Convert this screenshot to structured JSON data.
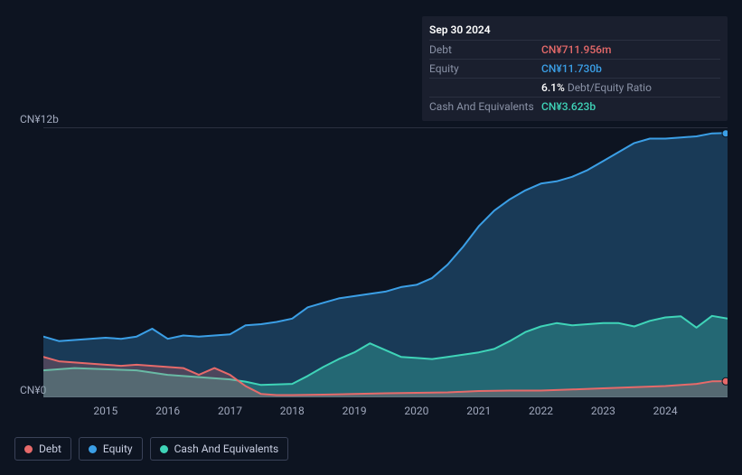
{
  "tooltip": {
    "title": "Sep 30 2024",
    "rows": [
      {
        "label": "Debt",
        "value": "CN¥711.956m",
        "color": "#e66a6a"
      },
      {
        "label": "Equity",
        "value": "CN¥11.730b",
        "color": "#3b9fe6"
      },
      {
        "label": "",
        "value": "6.1%",
        "suffix": "Debt/Equity Ratio",
        "color": "#ffffff"
      },
      {
        "label": "Cash And Equivalents",
        "value": "CN¥3.623b",
        "color": "#3fd4b8"
      }
    ]
  },
  "chart": {
    "type": "area",
    "background_color": "#0d1421",
    "grid_color": "#2a3040",
    "x_domain": [
      2014,
      2025
    ],
    "ylim": [
      0,
      12
    ],
    "y_unit_prefix": "CN¥",
    "y_axis": {
      "ticks": [
        {
          "value": 0,
          "label": "CN¥0"
        },
        {
          "value": 12,
          "label": "CN¥12b"
        }
      ]
    },
    "x_axis": {
      "ticks": [
        2015,
        2016,
        2017,
        2018,
        2019,
        2020,
        2021,
        2022,
        2023,
        2024
      ]
    },
    "series": [
      {
        "name": "Equity",
        "color": "#3b9fe6",
        "fill_opacity": 0.28,
        "line_width": 2,
        "data": [
          [
            2014.0,
            2.7
          ],
          [
            2014.25,
            2.5
          ],
          [
            2014.5,
            2.55
          ],
          [
            2014.75,
            2.6
          ],
          [
            2015.0,
            2.65
          ],
          [
            2015.25,
            2.6
          ],
          [
            2015.5,
            2.7
          ],
          [
            2015.75,
            3.05
          ],
          [
            2016.0,
            2.6
          ],
          [
            2016.25,
            2.75
          ],
          [
            2016.5,
            2.7
          ],
          [
            2016.75,
            2.75
          ],
          [
            2017.0,
            2.8
          ],
          [
            2017.25,
            3.2
          ],
          [
            2017.5,
            3.25
          ],
          [
            2017.75,
            3.35
          ],
          [
            2018.0,
            3.5
          ],
          [
            2018.25,
            4.0
          ],
          [
            2018.5,
            4.2
          ],
          [
            2018.75,
            4.4
          ],
          [
            2019.0,
            4.5
          ],
          [
            2019.25,
            4.6
          ],
          [
            2019.5,
            4.7
          ],
          [
            2019.75,
            4.9
          ],
          [
            2020.0,
            5.0
          ],
          [
            2020.25,
            5.3
          ],
          [
            2020.5,
            5.9
          ],
          [
            2020.75,
            6.7
          ],
          [
            2021.0,
            7.6
          ],
          [
            2021.25,
            8.3
          ],
          [
            2021.5,
            8.8
          ],
          [
            2021.75,
            9.2
          ],
          [
            2022.0,
            9.5
          ],
          [
            2022.25,
            9.6
          ],
          [
            2022.5,
            9.8
          ],
          [
            2022.75,
            10.1
          ],
          [
            2023.0,
            10.5
          ],
          [
            2023.25,
            10.9
          ],
          [
            2023.5,
            11.3
          ],
          [
            2023.75,
            11.5
          ],
          [
            2024.0,
            11.5
          ],
          [
            2024.25,
            11.55
          ],
          [
            2024.5,
            11.6
          ],
          [
            2024.75,
            11.73
          ],
          [
            2025.0,
            11.75
          ]
        ]
      },
      {
        "name": "Cash And Equivalents",
        "color": "#3fd4b8",
        "fill_opacity": 0.3,
        "line_width": 2,
        "data": [
          [
            2014.0,
            1.2
          ],
          [
            2014.5,
            1.3
          ],
          [
            2015.0,
            1.25
          ],
          [
            2015.5,
            1.2
          ],
          [
            2016.0,
            1.0
          ],
          [
            2016.5,
            0.9
          ],
          [
            2017.0,
            0.8
          ],
          [
            2017.25,
            0.7
          ],
          [
            2017.5,
            0.55
          ],
          [
            2018.0,
            0.6
          ],
          [
            2018.25,
            0.95
          ],
          [
            2018.5,
            1.35
          ],
          [
            2018.75,
            1.7
          ],
          [
            2019.0,
            2.0
          ],
          [
            2019.25,
            2.4
          ],
          [
            2019.5,
            2.1
          ],
          [
            2019.75,
            1.8
          ],
          [
            2020.0,
            1.75
          ],
          [
            2020.25,
            1.7
          ],
          [
            2020.5,
            1.8
          ],
          [
            2020.75,
            1.9
          ],
          [
            2021.0,
            2.0
          ],
          [
            2021.25,
            2.15
          ],
          [
            2021.5,
            2.5
          ],
          [
            2021.75,
            2.9
          ],
          [
            2022.0,
            3.15
          ],
          [
            2022.25,
            3.3
          ],
          [
            2022.5,
            3.2
          ],
          [
            2022.75,
            3.25
          ],
          [
            2023.0,
            3.3
          ],
          [
            2023.25,
            3.3
          ],
          [
            2023.5,
            3.15
          ],
          [
            2023.75,
            3.4
          ],
          [
            2024.0,
            3.55
          ],
          [
            2024.25,
            3.6
          ],
          [
            2024.5,
            3.1
          ],
          [
            2024.75,
            3.62
          ],
          [
            2025.0,
            3.5
          ]
        ]
      },
      {
        "name": "Debt",
        "color": "#e66a6a",
        "fill_opacity": 0.25,
        "line_width": 2,
        "data": [
          [
            2014.0,
            1.8
          ],
          [
            2014.25,
            1.6
          ],
          [
            2014.5,
            1.55
          ],
          [
            2014.75,
            1.5
          ],
          [
            2015.0,
            1.45
          ],
          [
            2015.25,
            1.4
          ],
          [
            2015.5,
            1.45
          ],
          [
            2015.75,
            1.4
          ],
          [
            2016.0,
            1.35
          ],
          [
            2016.25,
            1.3
          ],
          [
            2016.5,
            1.0
          ],
          [
            2016.75,
            1.3
          ],
          [
            2017.0,
            1.0
          ],
          [
            2017.25,
            0.5
          ],
          [
            2017.5,
            0.15
          ],
          [
            2017.75,
            0.1
          ],
          [
            2018.0,
            0.1
          ],
          [
            2018.5,
            0.12
          ],
          [
            2019.0,
            0.15
          ],
          [
            2019.5,
            0.18
          ],
          [
            2020.0,
            0.2
          ],
          [
            2020.5,
            0.22
          ],
          [
            2021.0,
            0.28
          ],
          [
            2021.5,
            0.3
          ],
          [
            2022.0,
            0.3
          ],
          [
            2022.5,
            0.35
          ],
          [
            2023.0,
            0.4
          ],
          [
            2023.5,
            0.45
          ],
          [
            2024.0,
            0.5
          ],
          [
            2024.5,
            0.6
          ],
          [
            2024.75,
            0.71
          ],
          [
            2025.0,
            0.72
          ]
        ]
      }
    ],
    "end_markers": [
      {
        "color": "#3b9fe6",
        "value": 11.73
      },
      {
        "color": "#e66a6a",
        "value": 0.71
      }
    ]
  },
  "legend": [
    {
      "label": "Debt",
      "color": "#e66a6a"
    },
    {
      "label": "Equity",
      "color": "#3b9fe6"
    },
    {
      "label": "Cash And Equivalents",
      "color": "#3fd4b8"
    }
  ]
}
